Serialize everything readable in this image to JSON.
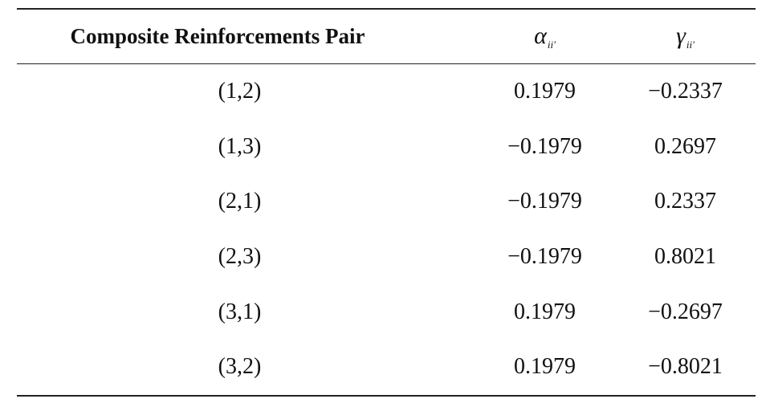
{
  "table": {
    "headers": {
      "pair": "Composite Reinforcements Pair",
      "alpha_symbol": "α",
      "alpha_subscript": "ii'",
      "gamma_symbol": "γ",
      "gamma_subscript": "ii'"
    },
    "rows": [
      {
        "pair": "(1,2)",
        "alpha": "0.1979",
        "gamma": "−0.2337"
      },
      {
        "pair": "(1,3)",
        "alpha": "−0.1979",
        "gamma": "0.2697"
      },
      {
        "pair": "(2,1)",
        "alpha": "−0.1979",
        "gamma": "0.2337"
      },
      {
        "pair": "(2,3)",
        "alpha": "−0.1979",
        "gamma": "0.8021"
      },
      {
        "pair": "(3,1)",
        "alpha": "0.1979",
        "gamma": "−0.2697"
      },
      {
        "pair": "(3,2)",
        "alpha": "0.1979",
        "gamma": "−0.8021"
      }
    ]
  }
}
